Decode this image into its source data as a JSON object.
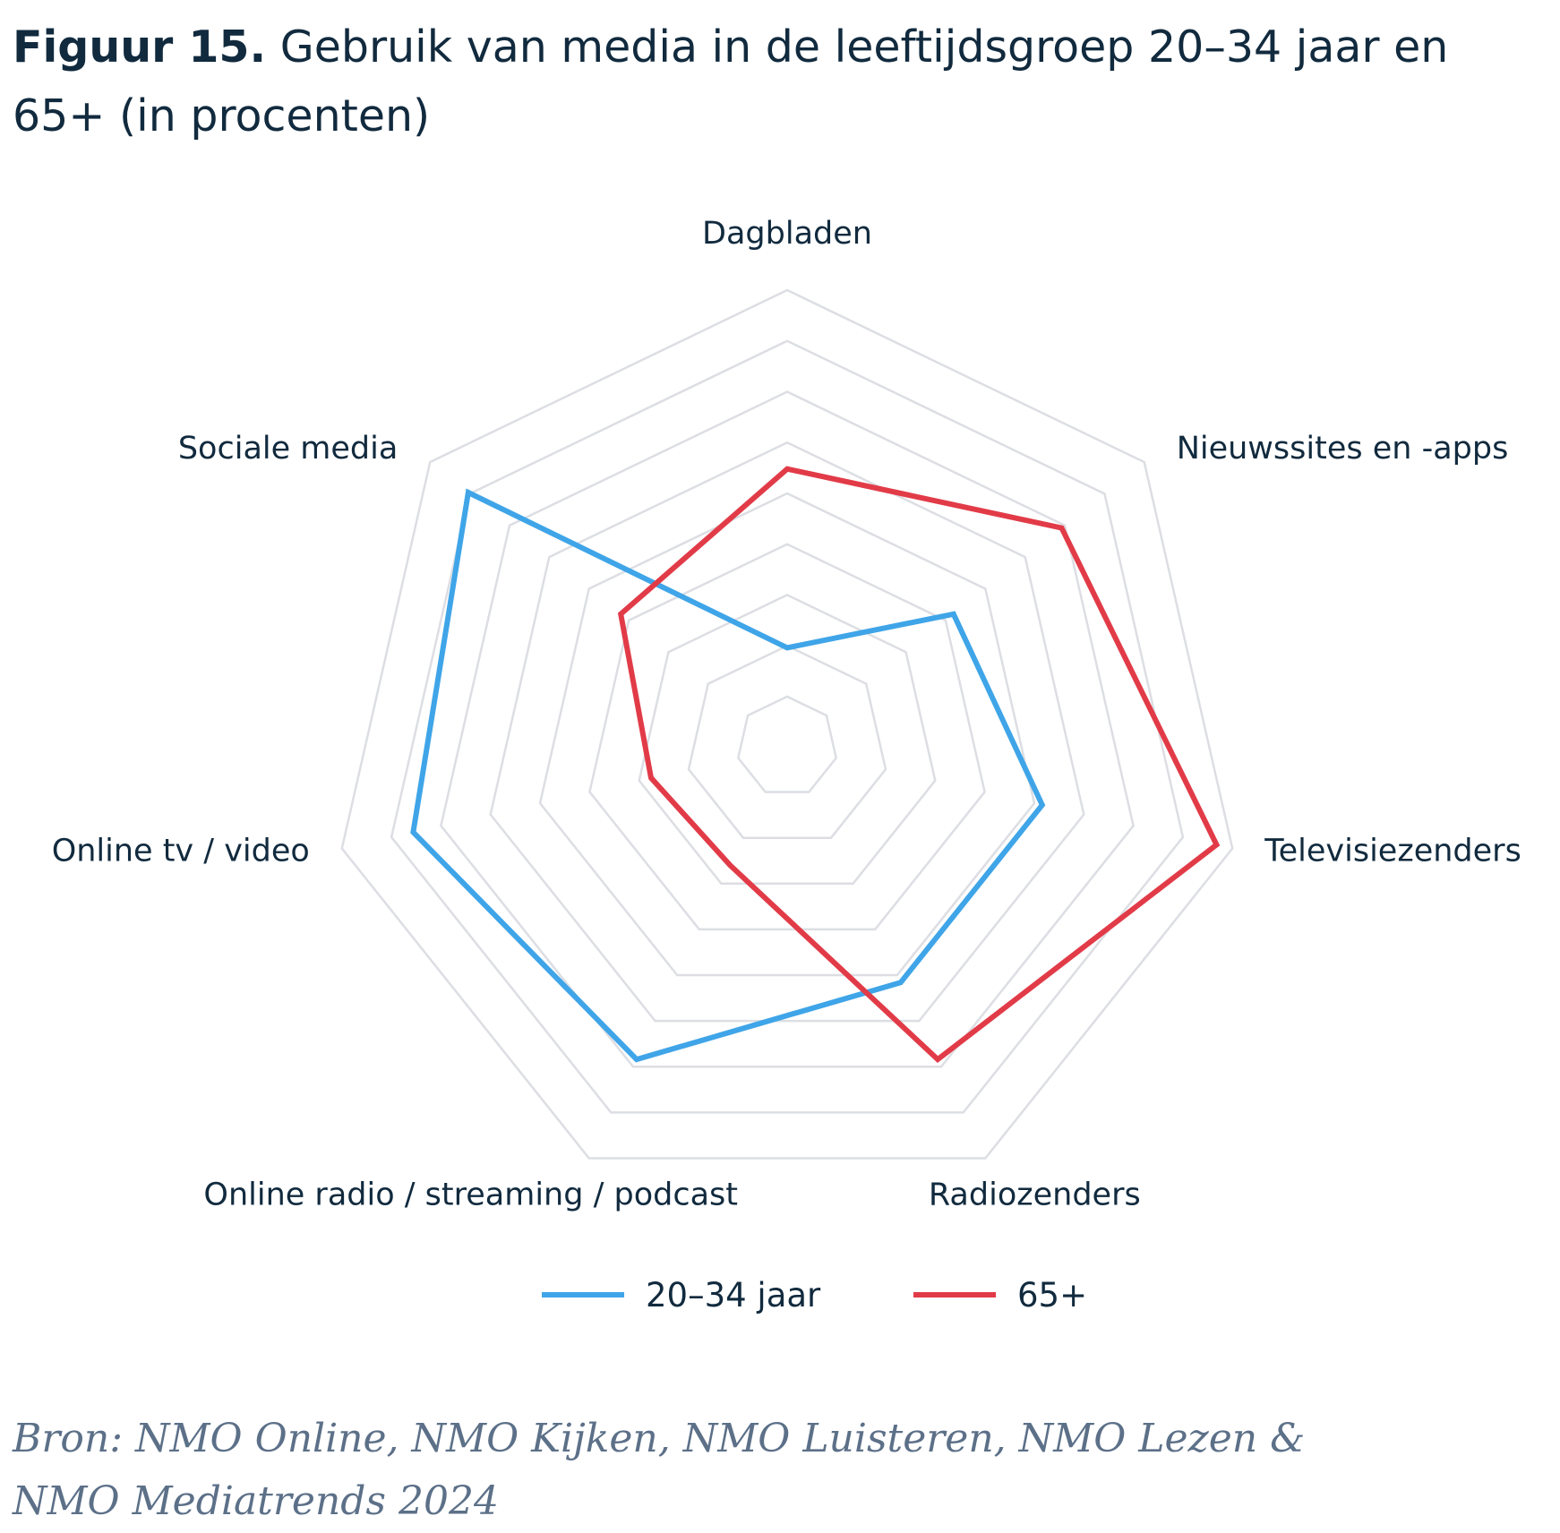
{
  "title": {
    "figure_label": "Figuur 15.",
    "text": "Gebruik van media in de leeftijdsgroep 20–34 jaar en 65+ (in procenten)"
  },
  "chart_data": {
    "type": "radar",
    "title": "Gebruik van media in de leeftijdsgroep 20–34 jaar en 65+ (in procenten)",
    "categories": [
      "Dagbladen",
      "Nieuwssites en -apps",
      "Televisiezenders",
      "Radiozenders",
      "Online radio / streaming / podcast",
      "Online tv / video",
      "Sociale media"
    ],
    "rlim": [
      0,
      100
    ],
    "grid_levels": 9,
    "series": [
      {
        "name": "20–34 jaar",
        "color": "#3fa5e8",
        "values": [
          12,
          40,
          52,
          52,
          73,
          82,
          88
        ]
      },
      {
        "name": "65+",
        "color": "#e23b48",
        "values": [
          56,
          74,
          96,
          73,
          20,
          22,
          40
        ]
      }
    ]
  },
  "source": {
    "line1": "Bron: NMO Online, NMO Kijken, NMO Luisteren, NMO Lezen &",
    "line2": "NMO Mediatrends 2024"
  }
}
